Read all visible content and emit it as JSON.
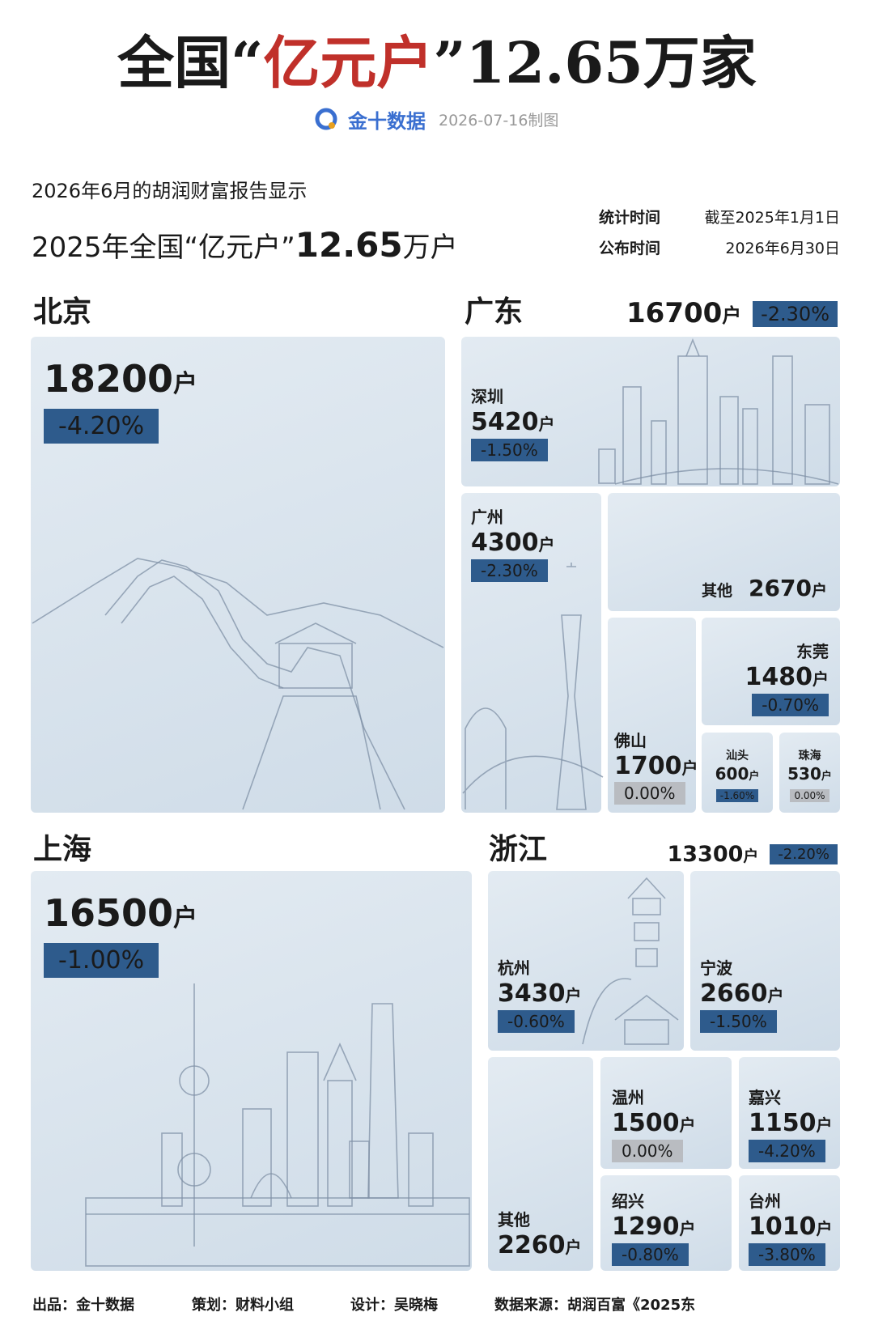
{
  "header": {
    "title_prefix": "全国“",
    "title_highlight": "亿元户",
    "title_suffix": "”12.65万家",
    "brand": "金十数据",
    "date": "2026-07-16制图"
  },
  "intro": {
    "line1": "2026年6月的胡润财富报告显示",
    "line2_prefix": "2025年全国“亿元户”",
    "line2_number": "12.65",
    "line2_unit": "万户"
  },
  "meta": [
    {
      "label": "统计时间",
      "value": "截至2025年1月1日"
    },
    {
      "label": "公布时间",
      "value": "2026年6月30日"
    }
  ],
  "unit": "户",
  "regions": [
    {
      "name": "北京",
      "count": 18200,
      "change": "-4.20%"
    },
    {
      "name": "广东",
      "count": 16700,
      "change": "-2.30%",
      "cities": [
        {
          "name": "深圳",
          "count": 5420,
          "change": "-1.50%"
        },
        {
          "name": "广州",
          "count": 4300,
          "change": "-2.30%"
        },
        {
          "name": "其他",
          "count": 2670
        },
        {
          "name": "佛山",
          "count": 1700,
          "change": "0.00%"
        },
        {
          "name": "东莞",
          "count": 1480,
          "change": "-0.70%"
        },
        {
          "name": "汕头",
          "count": 600,
          "change": "-1.60%"
        },
        {
          "name": "珠海",
          "count": 530,
          "change": "0.00%"
        }
      ]
    },
    {
      "name": "上海",
      "count": 16500,
      "change": "-1.00%"
    },
    {
      "name": "浙江",
      "count": 13300,
      "change": "-2.20%",
      "cities": [
        {
          "name": "杭州",
          "count": 3430,
          "change": "-0.60%"
        },
        {
          "name": "宁波",
          "count": 2660,
          "change": "-1.50%"
        },
        {
          "name": "其他",
          "count": 2260
        },
        {
          "name": "温州",
          "count": 1500,
          "change": "0.00%"
        },
        {
          "name": "嘉兴",
          "count": 1150,
          "change": "-4.20%"
        },
        {
          "name": "绍兴",
          "count": 1290,
          "change": "-0.80%"
        },
        {
          "name": "台州",
          "count": 1010,
          "change": "-3.80%"
        }
      ]
    }
  ],
  "footer": [
    "出品：金十数据",
    "策划：财料小组",
    "设计：吴晓梅",
    "数据来源：胡润百富《2025东"
  ]
}
